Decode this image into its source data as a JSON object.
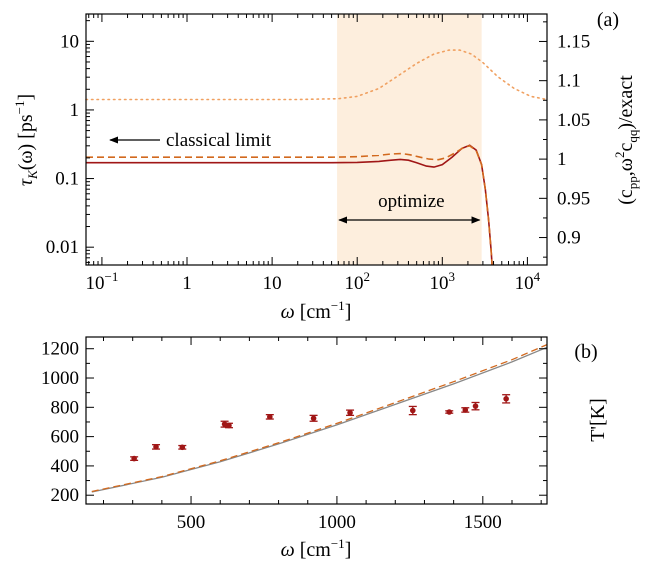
{
  "chart_data": [
    {
      "panel_label": "(a)",
      "type": "line",
      "x_scale": "log",
      "y_scale": "log",
      "xlim": [
        0.065,
        17000
      ],
      "ylim": [
        0.0055,
        25
      ],
      "y2lim": [
        0.865,
        1.185
      ],
      "x_ticks": [
        {
          "v": 0.1,
          "base": "10",
          "exp": "−1"
        },
        {
          "v": 1,
          "text": "1"
        },
        {
          "v": 10,
          "text": "10"
        },
        {
          "v": 100,
          "base": "10",
          "exp": "2"
        },
        {
          "v": 1000,
          "base": "10",
          "exp": "3"
        },
        {
          "v": 10000,
          "base": "10",
          "exp": "4"
        }
      ],
      "y_ticks": [
        {
          "v": 0.01,
          "text": "0.01"
        },
        {
          "v": 0.1,
          "text": "0.1"
        },
        {
          "v": 1,
          "text": "1"
        },
        {
          "v": 10,
          "text": "10"
        }
      ],
      "y2_ticks": [
        {
          "v": 0.9,
          "text": "0.9"
        },
        {
          "v": 0.95,
          "text": "0.95"
        },
        {
          "v": 1.0,
          "text": "1"
        },
        {
          "v": 1.05,
          "text": "1.05"
        },
        {
          "v": 1.1,
          "text": "1.1"
        },
        {
          "v": 1.15,
          "text": "1.15"
        }
      ],
      "xlabel": {
        "sym": "ω",
        "text": " [cm",
        "sup": "−1",
        "close": "]"
      },
      "ylabel": {
        "sym": "τ",
        "sub": "K",
        "mid": "(ω) [ps",
        "sup": "−1",
        "close": "]"
      },
      "y2label": {
        "p1": "(c",
        "s1": "pp",
        "p2": ",ω",
        "s2": "2",
        "p3": "c",
        "s3": "qq",
        "p4": ")/exact"
      },
      "shaded_region": {
        "x": [
          58,
          2900
        ],
        "color": "#fdeedd"
      },
      "annotations": {
        "left_arrow": "classical limit",
        "double_arrow": "optimize"
      },
      "series": [
        {
          "style": "solid",
          "axis": "left",
          "color": "#a01616",
          "points": [
            [
              0.065,
              0.17
            ],
            [
              50,
              0.17
            ],
            [
              100,
              0.172
            ],
            [
              180,
              0.178
            ],
            [
              250,
              0.185
            ],
            [
              320,
              0.19
            ],
            [
              400,
              0.185
            ],
            [
              500,
              0.17
            ],
            [
              650,
              0.152
            ],
            [
              800,
              0.147
            ],
            [
              1000,
              0.16
            ],
            [
              1300,
              0.205
            ],
            [
              1700,
              0.275
            ],
            [
              2100,
              0.305
            ],
            [
              2500,
              0.26
            ],
            [
              2900,
              0.16
            ],
            [
              3200,
              0.07
            ],
            [
              3500,
              0.025
            ],
            [
              3750,
              0.009
            ],
            [
              3850,
              0.0055
            ]
          ]
        },
        {
          "style": "dashed",
          "axis": "left",
          "color": "#d2691e",
          "points": [
            [
              0.065,
              0.205
            ],
            [
              50,
              0.205
            ],
            [
              100,
              0.208
            ],
            [
              180,
              0.218
            ],
            [
              250,
              0.228
            ],
            [
              330,
              0.232
            ],
            [
              420,
              0.222
            ],
            [
              550,
              0.205
            ],
            [
              700,
              0.192
            ],
            [
              900,
              0.188
            ],
            [
              1100,
              0.2
            ],
            [
              1400,
              0.235
            ],
            [
              1800,
              0.285
            ],
            [
              2100,
              0.3
            ],
            [
              2500,
              0.255
            ],
            [
              2900,
              0.16
            ],
            [
              3200,
              0.07
            ],
            [
              3500,
              0.025
            ],
            [
              3750,
              0.009
            ],
            [
              3850,
              0.0055
            ]
          ]
        },
        {
          "style": "dotted",
          "axis": "right",
          "color": "#f0a060",
          "points": [
            [
              0.065,
              1.076
            ],
            [
              20,
              1.076
            ],
            [
              60,
              1.077
            ],
            [
              100,
              1.08
            ],
            [
              180,
              1.09
            ],
            [
              300,
              1.106
            ],
            [
              500,
              1.122
            ],
            [
              800,
              1.134
            ],
            [
              1200,
              1.139
            ],
            [
              1600,
              1.139
            ],
            [
              2200,
              1.134
            ],
            [
              3000,
              1.123
            ],
            [
              4500,
              1.105
            ],
            [
              7000,
              1.09
            ],
            [
              11000,
              1.08
            ],
            [
              17000,
              1.076
            ]
          ]
        }
      ]
    },
    {
      "panel_label": "(b)",
      "type": "line",
      "xlim": [
        140,
        1720
      ],
      "ylim": [
        140,
        1280
      ],
      "x_ticks": [
        500,
        1000,
        1500
      ],
      "y_ticks": [
        200,
        400,
        600,
        800,
        1000,
        1200
      ],
      "xlabel": {
        "sym": "ω",
        "text": " [cm",
        "sup": "−1",
        "close": "]"
      },
      "y2label": "T'[K]",
      "series": [
        {
          "style": "solid",
          "color": "#888888",
          "points": [
            [
              160,
              222
            ],
            [
              400,
              322
            ],
            [
              600,
              428
            ],
            [
              800,
              550
            ],
            [
              1000,
              680
            ],
            [
              1200,
              820
            ],
            [
              1400,
              960
            ],
            [
              1600,
              1110
            ],
            [
              1720,
              1210
            ]
          ]
        },
        {
          "style": "dashed",
          "color": "#d2691e",
          "points": [
            [
              160,
              225
            ],
            [
              400,
              327
            ],
            [
              600,
              435
            ],
            [
              800,
              558
            ],
            [
              1000,
              690
            ],
            [
              1200,
              832
            ],
            [
              1400,
              975
            ],
            [
              1600,
              1125
            ],
            [
              1720,
              1228
            ]
          ]
        }
      ],
      "points": [
        {
          "x": 305,
          "y": 450,
          "err": 12
        },
        {
          "x": 380,
          "y": 530,
          "err": 15
        },
        {
          "x": 470,
          "y": 527,
          "err": 12
        },
        {
          "x": 615,
          "y": 685,
          "err": 20
        },
        {
          "x": 630,
          "y": 676,
          "err": 15
        },
        {
          "x": 770,
          "y": 735,
          "err": 15
        },
        {
          "x": 920,
          "y": 725,
          "err": 20
        },
        {
          "x": 1045,
          "y": 763,
          "err": 18
        },
        {
          "x": 1260,
          "y": 778,
          "err": 28
        },
        {
          "x": 1385,
          "y": 768,
          "err": 8
        },
        {
          "x": 1440,
          "y": 782,
          "err": 15
        },
        {
          "x": 1475,
          "y": 808,
          "err": 25
        },
        {
          "x": 1580,
          "y": 858,
          "err": 28
        }
      ],
      "point_color": "#a01616"
    }
  ]
}
